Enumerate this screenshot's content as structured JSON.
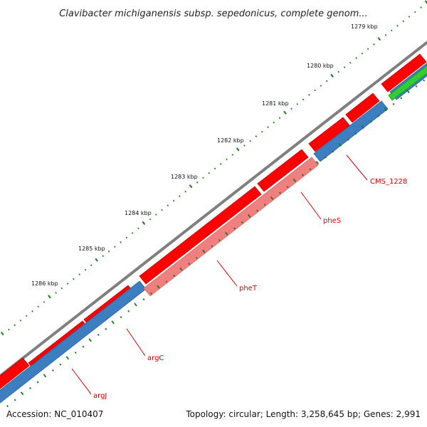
{
  "title": "Clavibacter michiganensis subsp. sepedonicus, complete genom...",
  "footer": {
    "accession": "Accession: NC_010407",
    "summary": "Topology: circular; Length: 3,258,645 bp; Genes: 2,991"
  },
  "scale": {
    "ticks": [
      {
        "label": "1279 kbp"
      },
      {
        "label": "1280 kbp"
      },
      {
        "label": "1281 kbp"
      },
      {
        "label": "1282 kbp"
      },
      {
        "label": "1283 kbp"
      },
      {
        "label": "1284 kbp"
      },
      {
        "label": "1285 kbp"
      },
      {
        "label": "1286 kbp"
      }
    ]
  },
  "genes": [
    {
      "name": "CMS_1228"
    },
    {
      "name": "pheS"
    },
    {
      "name": "pheT"
    },
    {
      "name": "argC"
    },
    {
      "name": "argJ"
    }
  ],
  "colors": {
    "backbone": "#7f7f7f",
    "forward_cds": "#ff0000",
    "reverse_cds": "#3d7ec0",
    "highlight_cds": "#f08080",
    "other_feature": "#33cc33",
    "scale_ticks": "#1b7a1b",
    "gene_labels": "#d40000"
  }
}
